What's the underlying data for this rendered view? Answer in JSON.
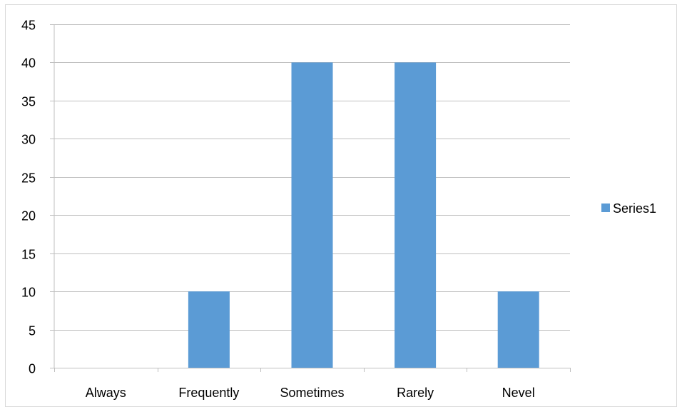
{
  "chart_data": {
    "type": "bar",
    "title": "",
    "xlabel": "",
    "ylabel": "",
    "categories": [
      "Always",
      "Frequently",
      "Sometimes",
      "Rarely",
      "Nevel"
    ],
    "series": [
      {
        "name": "Series1",
        "values": [
          0,
          10,
          40,
          40,
          10
        ],
        "color": "#5b9bd5"
      }
    ],
    "ylim": [
      0,
      45
    ],
    "ytick_step": 5,
    "grid": true,
    "legend_position": "right"
  }
}
